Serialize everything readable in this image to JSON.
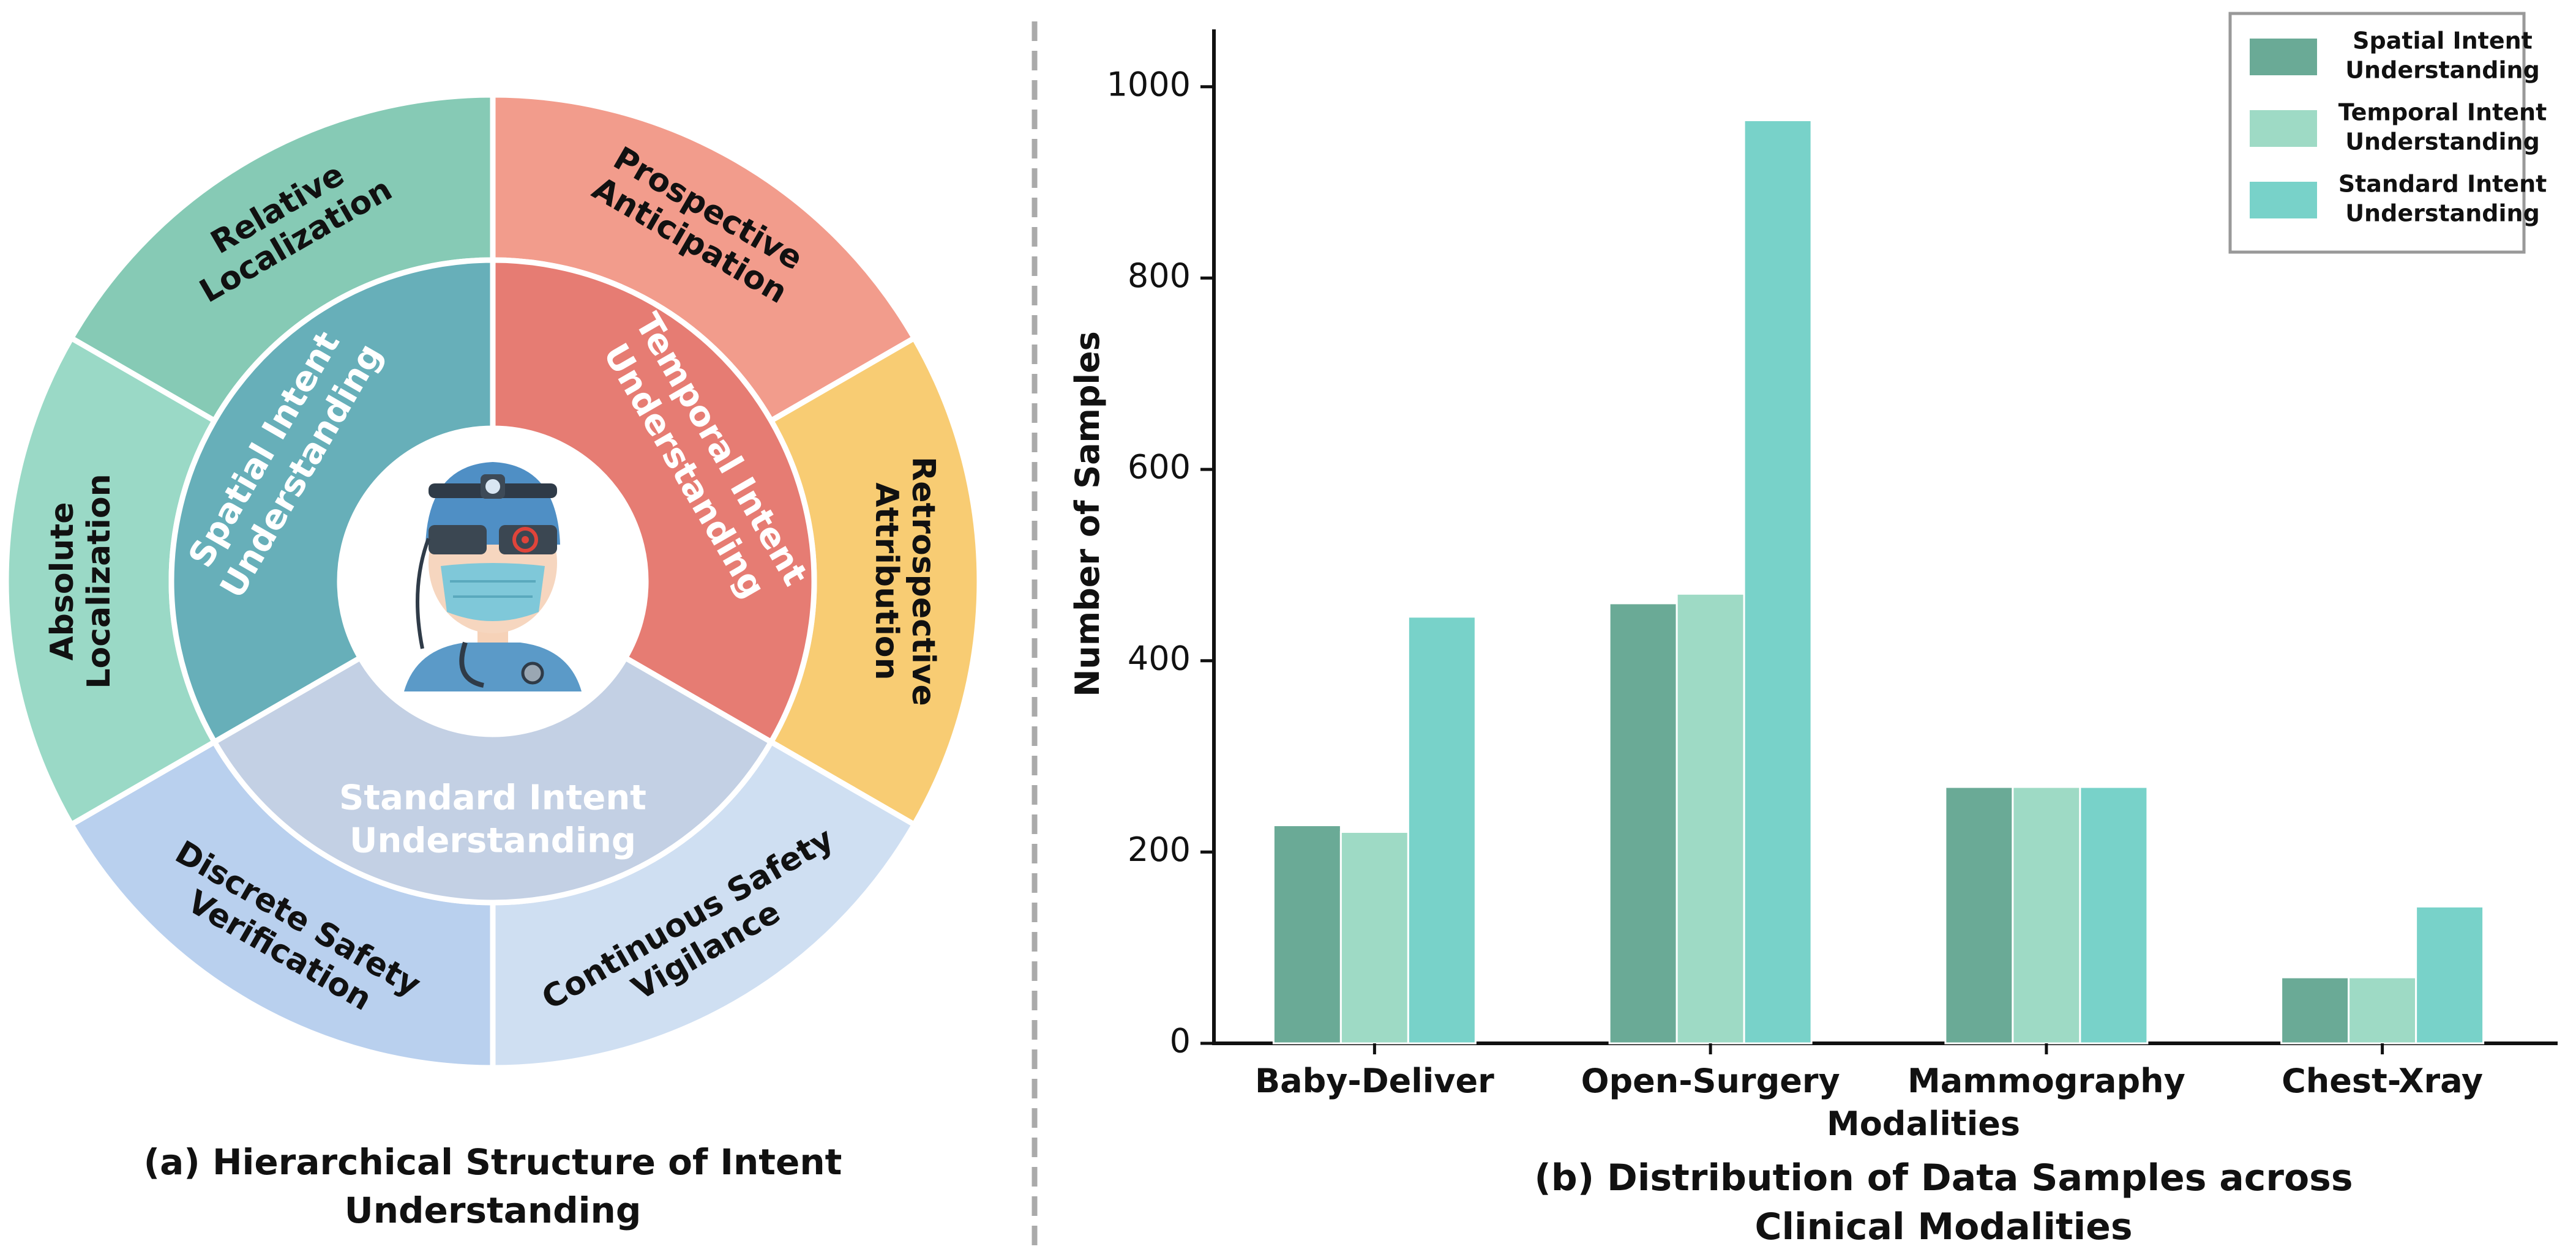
{
  "panel_a": {
    "caption_line1": "(a) Hierarchical Structure of Intent",
    "caption_line2": "Understanding",
    "inner_segments": [
      {
        "key": "spatial",
        "lines": [
          "Spatial Intent",
          "Understanding"
        ],
        "color": "#67afb9"
      },
      {
        "key": "temporal",
        "lines": [
          "Temporal Intent",
          "Understanding"
        ],
        "color": "#e67c73"
      },
      {
        "key": "standard",
        "lines": [
          "Standard Intent",
          "Understanding"
        ],
        "color": "#c3d0e4"
      }
    ],
    "outer_segments": [
      {
        "key": "relative",
        "lines": [
          "Relative",
          "Localization"
        ],
        "color": "#86cab5"
      },
      {
        "key": "prospective",
        "lines": [
          "Prospective",
          "Anticipation"
        ],
        "color": "#f29c8c"
      },
      {
        "key": "retrospective",
        "lines": [
          "Retrospective",
          "Attribution"
        ],
        "color": "#f8cc73"
      },
      {
        "key": "continuous",
        "lines": [
          "Continuous Safety",
          "Vigilance"
        ],
        "color": "#cfdff2"
      },
      {
        "key": "discrete",
        "lines": [
          "Discrete Safety",
          "Verification"
        ],
        "color": "#b9d0ee"
      },
      {
        "key": "absolute",
        "lines": [
          "Absolute",
          "Localization"
        ],
        "color": "#9ad9c6"
      }
    ],
    "center_image": "surgeon-with-headlamp-and-mask-icon"
  },
  "chart_data": {
    "type": "bar",
    "title": "(b)  Distribution of Data Samples across Clinical Modalities",
    "title_line1": "(b)  Distribution of Data Samples across",
    "title_line2": "Clinical Modalities",
    "xlabel": "Modalities",
    "ylabel": "Number of Samples",
    "categories": [
      "Baby-Deliver",
      "Open-Surgery",
      "Mammography",
      "Chest-Xray"
    ],
    "ylim": [
      0,
      1060
    ],
    "yticks": [
      0,
      200,
      400,
      600,
      800,
      1000
    ],
    "grid": false,
    "legend_position": "top-right",
    "series": [
      {
        "name": "Spatial Intent Understanding",
        "legend_lines": [
          "Spatial Intent",
          "Understanding"
        ],
        "color": "#6aaa96",
        "values": [
          228,
          460,
          268,
          69
        ]
      },
      {
        "name": "Temporal Intent Understanding",
        "legend_lines": [
          "Temporal Intent",
          "Understanding"
        ],
        "color": "#9edac5",
        "values": [
          221,
          470,
          268,
          69
        ]
      },
      {
        "name": "Standard Intent Understanding",
        "legend_lines": [
          "Standard Intent",
          "Understanding"
        ],
        "color": "#78d2c9",
        "values": [
          446,
          965,
          268,
          143
        ]
      }
    ]
  }
}
